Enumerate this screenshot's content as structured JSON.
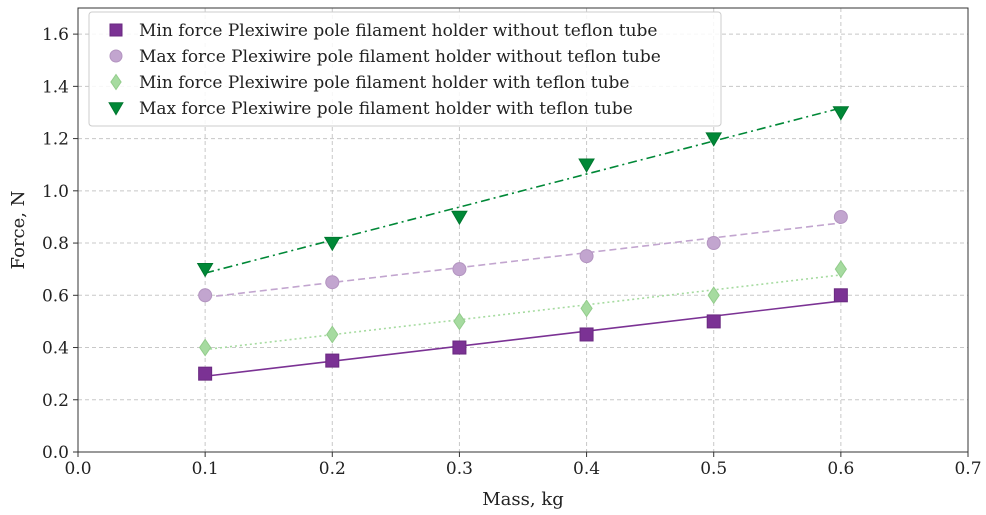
{
  "chart_data": {
    "type": "scatter",
    "title": "",
    "xlabel": "Mass, kg",
    "ylabel": "Force, N",
    "xlim": [
      0.0,
      0.7
    ],
    "ylim": [
      0.0,
      1.7
    ],
    "x_ticks": [
      "0.0",
      "0.1",
      "0.2",
      "0.3",
      "0.4",
      "0.5",
      "0.6",
      "0.7"
    ],
    "y_ticks": [
      "0.0",
      "0.2",
      "0.4",
      "0.6",
      "0.8",
      "1.0",
      "1.2",
      "1.4",
      "1.6"
    ],
    "grid": true,
    "legend_position": "top-left",
    "x": [
      0.1,
      0.2,
      0.3,
      0.4,
      0.5,
      0.6
    ],
    "series": [
      {
        "name": "Min force Plexiwire pole filament holder without teflon tube",
        "marker": "square",
        "color": "#7b3294",
        "line_style": "solid",
        "values": [
          0.3,
          0.35,
          0.4,
          0.45,
          0.5,
          0.6
        ],
        "fit": [
          0.29,
          0.578
        ]
      },
      {
        "name": "Max force Plexiwire pole filament holder without teflon tube",
        "marker": "circle",
        "color": "#c2a5cf",
        "line_style": "dashed",
        "values": [
          0.6,
          0.65,
          0.7,
          0.75,
          0.8,
          0.9
        ],
        "fit": [
          0.592,
          0.877
        ]
      },
      {
        "name": "Min force Plexiwire pole filament holder with teflon tube",
        "marker": "diamond",
        "color": "#a6dba0",
        "line_style": "dotted",
        "values": [
          0.4,
          0.45,
          0.5,
          0.55,
          0.6,
          0.7
        ],
        "fit": [
          0.392,
          0.678
        ]
      },
      {
        "name": "Max force Plexiwire pole filament holder with teflon tube",
        "marker": "triangle-down",
        "color": "#008837",
        "line_style": "dashdot",
        "values": [
          0.7,
          0.8,
          0.9,
          1.1,
          1.2,
          1.3
        ],
        "fit": [
          0.685,
          1.317
        ]
      }
    ]
  }
}
